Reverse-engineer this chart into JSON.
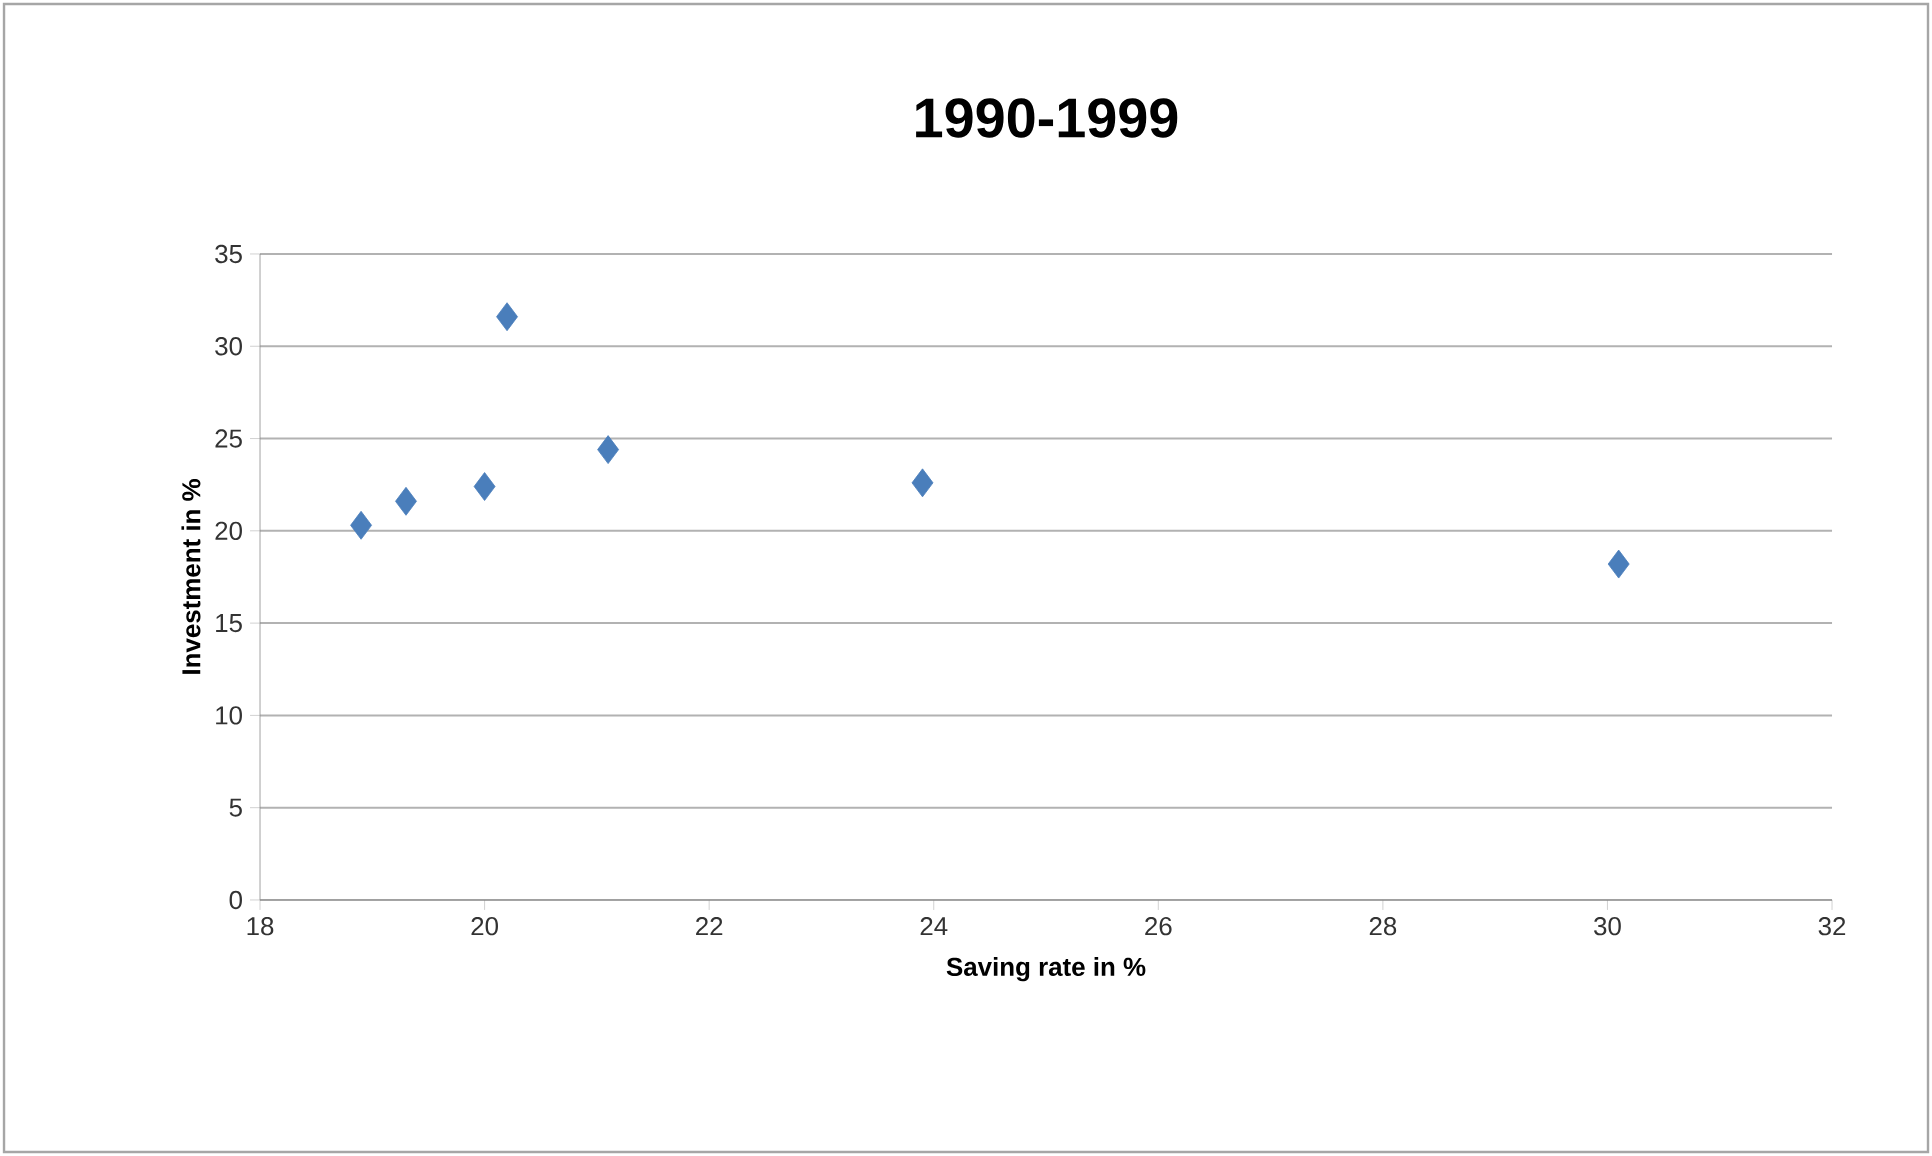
{
  "chart_data": {
    "type": "scatter",
    "title": "1990-1999",
    "xlabel": "Saving rate in %",
    "ylabel": "Investment in %",
    "x": [
      18.9,
      19.3,
      20.0,
      20.2,
      21.1,
      23.9,
      30.1
    ],
    "series": [
      {
        "color": "#4a7ebb",
        "values": [
          20.3,
          21.6,
          22.4,
          31.6,
          24.4,
          22.6,
          18.2
        ]
      }
    ],
    "xlim": [
      18,
      32
    ],
    "ylim": [
      0,
      35
    ],
    "xticks": [
      18,
      20,
      22,
      24,
      26,
      28,
      30,
      32
    ],
    "yticks": [
      0,
      5,
      10,
      15,
      20,
      25,
      30,
      35
    ],
    "grid": "y",
    "marker": "diamond"
  }
}
